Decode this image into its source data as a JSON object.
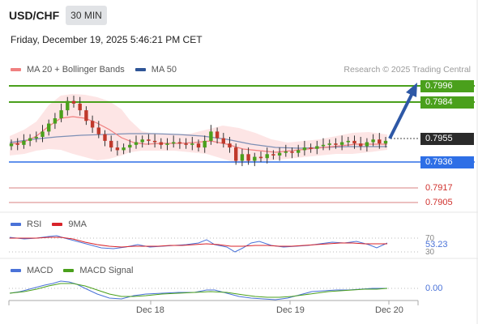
{
  "header": {
    "symbol": "USD/CHF",
    "timeframe": "30 MIN",
    "datetime": "Friday, December 19, 2025 5:46:21 PM CET"
  },
  "legend": {
    "items": [
      {
        "label": "MA 20 + Bollinger Bands",
        "color": "#f08080"
      },
      {
        "label": "MA 50",
        "color": "#2f5597"
      }
    ],
    "copyright": "Research © 2025 Trading Central"
  },
  "price_levels": [
    {
      "value": "0.7996",
      "kind": "resistance-2",
      "color": "#4aa01c"
    },
    {
      "value": "0.7984",
      "kind": "resistance-1",
      "color": "#4aa01c"
    },
    {
      "value": "0.7955",
      "kind": "current",
      "color": "#2a2a2a"
    },
    {
      "value": "0.7936",
      "kind": "pivot",
      "color": "#2e6fe6"
    },
    {
      "value": "0.7917",
      "kind": "support-1",
      "color": "#d0312d"
    },
    {
      "value": "0.7905",
      "kind": "support-2",
      "color": "#d0312d"
    }
  ],
  "rsi": {
    "legend": [
      {
        "label": "RSI",
        "color": "#4a72d8"
      },
      {
        "label": "9MA",
        "color": "#d8232a"
      }
    ],
    "upper_level": "70",
    "lower_level": "30",
    "value": "53.23"
  },
  "macd": {
    "legend": [
      {
        "label": "MACD",
        "color": "#4a72d8"
      },
      {
        "label": "MACD Signal",
        "color": "#4aa01c"
      }
    ],
    "value": "0.00"
  },
  "x_axis": {
    "labels": [
      "Dec 18",
      "Dec 19",
      "Dec 20"
    ]
  },
  "chart_data": {
    "type": "candlestick",
    "ylim": [
      0.7905,
      0.8
    ],
    "close": [
      0.7953,
      0.7952,
      0.7955,
      0.7957,
      0.7958,
      0.7962,
      0.7968,
      0.7972,
      0.7978,
      0.7985,
      0.7983,
      0.7978,
      0.797,
      0.7965,
      0.796,
      0.7955,
      0.795,
      0.7948,
      0.795,
      0.7952,
      0.7954,
      0.7956,
      0.7955,
      0.7954,
      0.7952,
      0.7953,
      0.7954,
      0.7953,
      0.7952,
      0.7953,
      0.795,
      0.7955,
      0.7962,
      0.7957,
      0.7953,
      0.795,
      0.794,
      0.7945,
      0.794,
      0.7943,
      0.7942,
      0.7945,
      0.7944,
      0.7946,
      0.7947,
      0.7946,
      0.7948,
      0.795,
      0.7949,
      0.7951,
      0.7952,
      0.7953,
      0.7952,
      0.7954,
      0.7955,
      0.7953,
      0.7951,
      0.7954,
      0.7956,
      0.7953,
      0.7955
    ]
  }
}
